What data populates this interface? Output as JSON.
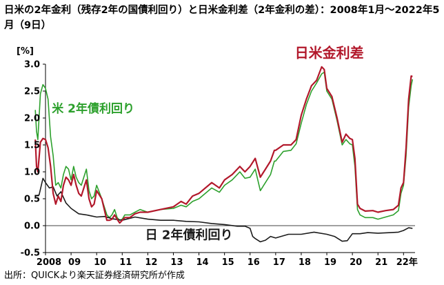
{
  "title": "日米の2年金利（残存2年の国債利回り）と日米金利差（2年金利の差）：2008年1月～2022年5月（9日）",
  "source": "出所：QUICKより楽天証券経済研究所が作成",
  "colors": {
    "us": "#2ca02c",
    "spread": "#b2182b",
    "japan": "#1a1a1a",
    "axis": "#000000",
    "grid": "#000000"
  },
  "chart_data": {
    "type": "line",
    "ylabel": "[%]",
    "ylim": [
      -0.5,
      3.0
    ],
    "yticks": [
      "3.0",
      "2.5",
      "2.0",
      "1.5",
      "1.0",
      "0.5",
      "0.0",
      "-0.5"
    ],
    "xlim": [
      2008.0,
      2022.45
    ],
    "xticks": [
      {
        "x": 2008.0,
        "label": "2008"
      },
      {
        "x": 2009.0,
        "label": "09"
      },
      {
        "x": 2010.0,
        "label": "10"
      },
      {
        "x": 2011.0,
        "label": "11"
      },
      {
        "x": 2012.0,
        "label": "12"
      },
      {
        "x": 2013.0,
        "label": "13"
      },
      {
        "x": 2014.0,
        "label": "14"
      },
      {
        "x": 2015.0,
        "label": "15"
      },
      {
        "x": 2016.0,
        "label": "16"
      },
      {
        "x": 2017.0,
        "label": "17"
      },
      {
        "x": 2018.0,
        "label": "18"
      },
      {
        "x": 2019.0,
        "label": "19"
      },
      {
        "x": 2020.0,
        "label": "20"
      },
      {
        "x": 2021.0,
        "label": "21"
      },
      {
        "x": 2022.0,
        "label": "22年"
      }
    ],
    "grid": false,
    "series": [
      {
        "name": "米 2年債利回り",
        "color": "#2ca02c",
        "x": [
          2007.6,
          2007.65,
          2007.7,
          2007.8,
          2007.9,
          2008.0,
          2008.1,
          2008.2,
          2008.3,
          2008.4,
          2008.5,
          2008.6,
          2008.7,
          2008.8,
          2008.9,
          2009.0,
          2009.1,
          2009.2,
          2009.3,
          2009.4,
          2009.5,
          2009.6,
          2009.7,
          2009.8,
          2009.9,
          2010.0,
          2010.2,
          2010.3,
          2010.4,
          2010.5,
          2010.6,
          2010.7,
          2010.8,
          2010.9,
          2011.0,
          2011.1,
          2011.3,
          2011.5,
          2011.7,
          2012.0,
          2012.5,
          2013.0,
          2013.3,
          2013.5,
          2013.75,
          2014.0,
          2014.5,
          2014.8,
          2015.0,
          2015.3,
          2015.6,
          2015.8,
          2016.0,
          2016.2,
          2016.4,
          2016.6,
          2016.8,
          2016.95,
          2017.0,
          2017.3,
          2017.6,
          2017.8,
          2018.0,
          2018.2,
          2018.4,
          2018.6,
          2018.8,
          2018.9,
          2019.0,
          2019.2,
          2019.4,
          2019.6,
          2019.75,
          2019.9,
          2020.0,
          2020.1,
          2020.2,
          2020.3,
          2020.5,
          2020.8,
          2021.0,
          2021.3,
          2021.6,
          2021.8,
          2021.9,
          2022.0,
          2022.1,
          2022.2,
          2022.3,
          2022.35
        ],
        "y": [
          2.15,
          1.75,
          1.6,
          2.45,
          2.62,
          2.55,
          2.35,
          1.65,
          1.3,
          0.75,
          0.8,
          0.7,
          0.95,
          1.1,
          1.05,
          0.85,
          1.1,
          0.9,
          0.8,
          0.75,
          0.9,
          1.05,
          0.65,
          0.5,
          0.55,
          0.75,
          0.5,
          0.35,
          0.2,
          0.15,
          0.2,
          0.3,
          0.15,
          0.1,
          0.12,
          0.2,
          0.2,
          0.25,
          0.3,
          0.25,
          0.3,
          0.32,
          0.38,
          0.35,
          0.45,
          0.5,
          0.7,
          0.62,
          0.75,
          0.85,
          1.0,
          0.88,
          0.9,
          1.05,
          0.65,
          0.8,
          0.95,
          1.2,
          1.2,
          1.38,
          1.4,
          1.52,
          1.9,
          2.25,
          2.5,
          2.65,
          2.82,
          2.85,
          2.5,
          2.35,
          1.95,
          1.5,
          1.6,
          1.52,
          1.5,
          1.1,
          0.3,
          0.2,
          0.15,
          0.15,
          0.12,
          0.16,
          0.2,
          0.28,
          0.6,
          0.75,
          1.3,
          2.2,
          2.6,
          2.72
        ]
      },
      {
        "name": "日米金利差",
        "color": "#b2182b",
        "x": [
          2007.6,
          2007.65,
          2007.7,
          2007.8,
          2007.9,
          2008.0,
          2008.1,
          2008.2,
          2008.3,
          2008.4,
          2008.5,
          2008.6,
          2008.7,
          2008.8,
          2008.9,
          2009.0,
          2009.1,
          2009.2,
          2009.3,
          2009.4,
          2009.5,
          2009.6,
          2009.7,
          2009.8,
          2009.9,
          2010.0,
          2010.2,
          2010.3,
          2010.4,
          2010.5,
          2010.6,
          2010.7,
          2010.8,
          2010.9,
          2011.0,
          2011.1,
          2011.3,
          2011.5,
          2011.7,
          2012.0,
          2012.5,
          2013.0,
          2013.3,
          2013.5,
          2013.75,
          2014.0,
          2014.5,
          2014.8,
          2015.0,
          2015.3,
          2015.6,
          2015.8,
          2016.0,
          2016.2,
          2016.4,
          2016.6,
          2016.8,
          2016.95,
          2017.0,
          2017.3,
          2017.6,
          2017.8,
          2018.0,
          2018.2,
          2018.4,
          2018.6,
          2018.8,
          2018.9,
          2019.0,
          2019.2,
          2019.4,
          2019.6,
          2019.75,
          2019.9,
          2020.0,
          2020.1,
          2020.2,
          2020.3,
          2020.5,
          2020.8,
          2021.0,
          2021.3,
          2021.6,
          2021.8,
          2021.9,
          2022.0,
          2022.1,
          2022.2,
          2022.3,
          2022.35
        ],
        "y": [
          1.6,
          1.1,
          1.0,
          1.55,
          1.62,
          1.6,
          1.45,
          1.1,
          0.6,
          0.4,
          0.55,
          0.45,
          0.75,
          0.9,
          0.85,
          0.75,
          0.95,
          0.75,
          0.6,
          0.55,
          0.7,
          0.85,
          0.5,
          0.35,
          0.4,
          0.65,
          0.5,
          0.3,
          0.1,
          0.1,
          0.12,
          0.2,
          0.12,
          0.05,
          0.1,
          0.15,
          0.15,
          0.22,
          0.25,
          0.25,
          0.3,
          0.35,
          0.45,
          0.4,
          0.55,
          0.6,
          0.8,
          0.7,
          0.85,
          0.95,
          1.1,
          1.0,
          1.1,
          1.25,
          0.9,
          1.05,
          1.2,
          1.4,
          1.4,
          1.5,
          1.5,
          1.6,
          2.05,
          2.35,
          2.6,
          2.7,
          2.95,
          2.9,
          2.55,
          2.4,
          2.0,
          1.55,
          1.7,
          1.62,
          1.6,
          1.25,
          0.4,
          0.32,
          0.27,
          0.28,
          0.25,
          0.28,
          0.3,
          0.38,
          0.7,
          0.8,
          1.45,
          2.35,
          2.78,
          2.77
        ]
      },
      {
        "name": "日 2年債利回り",
        "color": "#1a1a1a",
        "x": [
          2007.6,
          2007.75,
          2007.9,
          2008.0,
          2008.15,
          2008.3,
          2008.45,
          2008.6,
          2008.8,
          2009.0,
          2009.3,
          2009.6,
          2010.0,
          2010.3,
          2010.6,
          2011.0,
          2011.5,
          2012.0,
          2012.5,
          2013.0,
          2013.5,
          2014.0,
          2014.5,
          2015.0,
          2015.5,
          2015.8,
          2016.0,
          2016.1,
          2016.2,
          2016.4,
          2016.6,
          2016.8,
          2017.0,
          2017.5,
          2018.0,
          2018.5,
          2019.0,
          2019.3,
          2019.6,
          2019.8,
          2020.0,
          2020.3,
          2020.6,
          2021.0,
          2021.5,
          2021.8,
          2022.0,
          2022.2,
          2022.35
        ],
        "y": [
          0.55,
          0.57,
          0.88,
          0.8,
          0.7,
          0.72,
          0.55,
          0.63,
          0.42,
          0.32,
          0.22,
          0.2,
          0.16,
          0.17,
          0.13,
          0.1,
          0.16,
          0.12,
          0.1,
          0.1,
          0.08,
          0.07,
          0.04,
          0.02,
          -0.01,
          -0.01,
          -0.05,
          -0.2,
          -0.24,
          -0.3,
          -0.27,
          -0.2,
          -0.23,
          -0.16,
          -0.16,
          -0.12,
          -0.16,
          -0.2,
          -0.29,
          -0.28,
          -0.15,
          -0.15,
          -0.13,
          -0.14,
          -0.13,
          -0.12,
          -0.09,
          -0.04,
          -0.05
        ]
      }
    ],
    "annotations": [
      {
        "text": "日米金利差",
        "color": "#b2182b",
        "x": 2017.75,
        "y": 3.12,
        "size": 20
      },
      {
        "text": "米  2年債利回り",
        "color": "#2ca02c",
        "x": 2008.25,
        "y": 2.1,
        "size": 17
      },
      {
        "text": "日   2年債利回り",
        "color": "#1a1a1a",
        "x": 2011.9,
        "y": -0.25,
        "size": 18
      }
    ]
  }
}
